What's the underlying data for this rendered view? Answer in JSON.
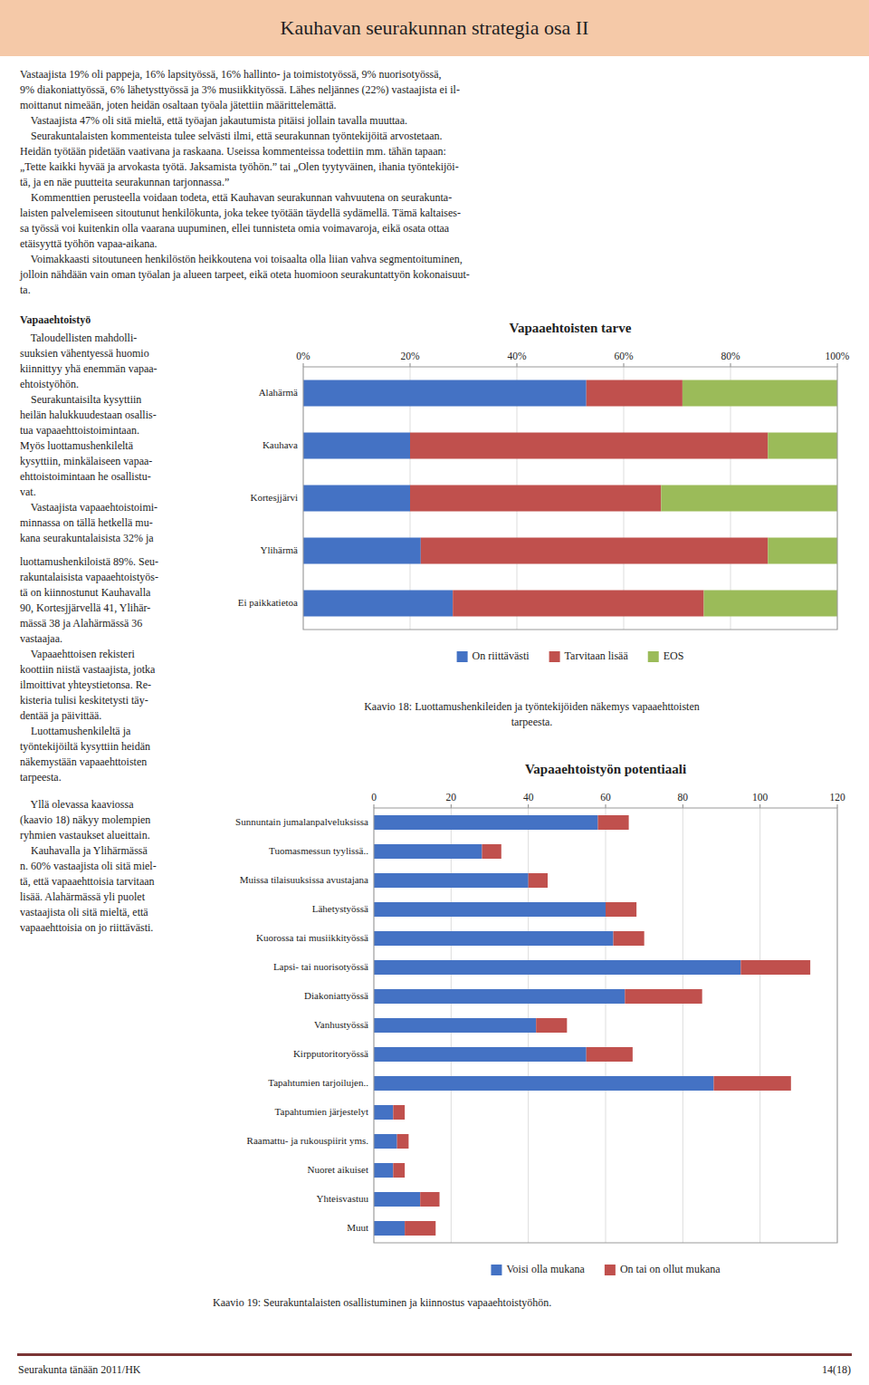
{
  "title": "Kauhavan seurakunnan strategia osa II",
  "title_bg": "#f5c9a8",
  "body_text_lines": [
    "Vastaajista 19% oli pappeja, 16% lapsityössä, 16% hallinto- ja toimistotyössä, 9% nuorisotyössä,",
    "9% diakoniattyössä, 6% lähetysttyössä ja 3% musiikkityössä. Lähes neljännes (22%) vastaajista ei il-",
    "moittanut nimeään, joten heidän osaltaan työala jätettiin määrittelemättä.",
    "    Vastaajista 47% oli sitä mieltä, että työajan jakautumista pitäisi jollain tavalla muuttaa.",
    "    Seurakuntalaisten kommenteista tulee selvästi ilmi, että seurakunnan työntekijöitä arvostetaan.",
    "Heidän työtään pidetään vaativana ja raskaana. Useissa kommenteissa todettiin mm. tähän tapaan:",
    "„Tette kaikki hyvää ja arvokasta työtä. Jaksamista työhön.” tai „Olen tyytyväinen, ihania työntekijöi-",
    "tä, ja en näe puutteita seurakunnan tarjonnassa.”",
    "    Kommenttien perusteella voidaan todeta, että Kauhavan seurakunnan vahvuutena on seurakunta-",
    "laisten palvelemiseen sitoutunut henkilökunta, joka tekee työtään täydellä sydämellä. Tämä kaltaises-",
    "sa työssä voi kuitenkin olla vaarana uupuminen, ellei tunnisteta omia voimavaroja, eikä osata ottaa",
    "etäisyyttä työhön vapaa-aikana.",
    "    Voimakkaasti sitoutuneen henkilöstön heikkoutena voi toisaalta olla liian vahva segmentoituminen,",
    "jolloin nähdään vain oman työalan ja alueen tarpeet, eikä oteta huomioon seurakuntattyön kokonaisuut-",
    "ta."
  ],
  "left_col_lines_1": [
    "Vapaaehtoistyö",
    "    Taloudellisten mahdolli-",
    "suuksien vähentyessä huomio",
    "kiinnittyy yhä enemmän vapaa-",
    "ehtoistyöhön.",
    "    Seurakuntaisilta kysyttiin",
    "heilän halukkuudestaan osallis-",
    "tua vapaaehttoistoimintaan.",
    "Myös luottamushenkileltä",
    "kysyttiin, minkälaiseen vapaa-",
    "ehttoistoimintaan he osallistu-",
    "vat.",
    "    Vastaajista vapaaehtoistoimi-",
    "minnassa on tällä hetkellä mu-",
    "kana seurakuntalaisista 32% ja"
  ],
  "left_col_lines_2": [
    "luottamushenkiloistä 89%. Seu-",
    "rakuntalaisista vapaaehtoistyös-",
    "tä on kiinnostunut Kauhavalla",
    "90, Kortesjjärvellä 41, Ylihär-",
    "mässä 38 ja Alahärmässä 36",
    "vastaajaa.",
    "    Vapaaehttoisen rekisteri",
    "koottiin niistä vastaajista, jotka",
    "ilmoittivat yhteystietonsa. Re-",
    "kisteria tulisi keskitetysti täy-",
    "dentää ja päivittää.",
    "    Luottamushenkileltä ja",
    "työntekijöiltä kysyttiin heidän",
    "näkemystään vapaaehttoisten",
    "tarpeesta."
  ],
  "left_col_lines_3": [
    "    Yllä olevassa kaaviossa",
    "(kaavio 18) näkyy molempien",
    "ryhmien vastaukset alueittain.",
    "    Kauhavalla ja Ylihärmässä",
    "n. 60% vastaajista oli sitä miel-",
    "tä, että vapaaehttoisia tarvitaan",
    "lisää. Alahärmässä yli puolet",
    "vastaajista oli sitä mieltä, että",
    "vapaaehttoisia on jo riittävästi."
  ],
  "footer_left": "Seurakunta tänään 2011/HK",
  "footer_right": "14(18)",
  "footer_line_color": "#7b3535",
  "chart_data": [
    {
      "type": "bar",
      "orientation": "horizontal",
      "stacked": true,
      "title": "Vapaaehtoisten tarve",
      "categories": [
        "Alahärmä",
        "Kauhava",
        "Kortesjjärvi",
        "Ylihärmä",
        "Ei paikkatietoa"
      ],
      "series": [
        {
          "name": "On riittävästi",
          "color": "#4472c4",
          "values": [
            53,
            20,
            20,
            22,
            28
          ]
        },
        {
          "name": "Tarvitaan lisää",
          "color": "#c0504d",
          "values": [
            18,
            67,
            47,
            65,
            47
          ]
        },
        {
          "name": "EOS",
          "color": "#9bbb59",
          "values": [
            29,
            13,
            33,
            13,
            25
          ]
        }
      ],
      "xlim": [
        0,
        100
      ],
      "xticks": [
        {
          "value": 0,
          "label": "0%"
        },
        {
          "value": 20,
          "label": "20%"
        },
        {
          "value": 40,
          "label": "40%"
        },
        {
          "value": 60,
          "label": "60%"
        },
        {
          "value": 80,
          "label": "80%"
        },
        {
          "value": 100,
          "label": "100%"
        }
      ],
      "grid": true,
      "legend": "bottom",
      "caption": "Kaavio 18: Luottamushenkileiden ja työntekijöiden näkemys vapaaehttoisten\ntarpeesta."
    },
    {
      "type": "bar",
      "orientation": "horizontal",
      "stacked": true,
      "title": "Vapaaehtoistyön potentiaali",
      "categories": [
        "Sunnuntain jumalanpalveluksissa",
        "Tuomasmessun tyylissä..",
        "Muissa tilaisuuksissa avustajana",
        "Lähetystyössä",
        "Kuorossa tai musiikkityössä",
        "Lapsi- tai nuorisotyössä",
        "Diakoniattyössä",
        "Vanhustyössä",
        "Kirpputoritoryössä",
        "Tapahtumien tarjoilujen..",
        "Tapahtumien järjestelyt",
        "Raamattu- ja rukouspiirit yms.",
        "Nuoret aikuiset",
        "Yhteisvastuu",
        "Muut"
      ],
      "series": [
        {
          "name": "Voisi olla mukana",
          "color": "#4472c4",
          "values": [
            58,
            28,
            40,
            60,
            62,
            95,
            65,
            42,
            55,
            88,
            5,
            6,
            5,
            12,
            8
          ]
        },
        {
          "name": "On tai on ollut mukana",
          "color": "#c0504d",
          "values": [
            8,
            5,
            5,
            8,
            8,
            18,
            20,
            8,
            12,
            20,
            3,
            3,
            3,
            5,
            8
          ]
        }
      ],
      "xlim": [
        0,
        120
      ],
      "xticks": [
        0,
        20,
        40,
        60,
        80,
        100,
        120
      ],
      "grid": true,
      "legend": "bottom",
      "caption": "Kaavio 19: Seurakuntalaisten osallistuminen ja kiinnostus vapaaehtoistyöhön."
    }
  ]
}
